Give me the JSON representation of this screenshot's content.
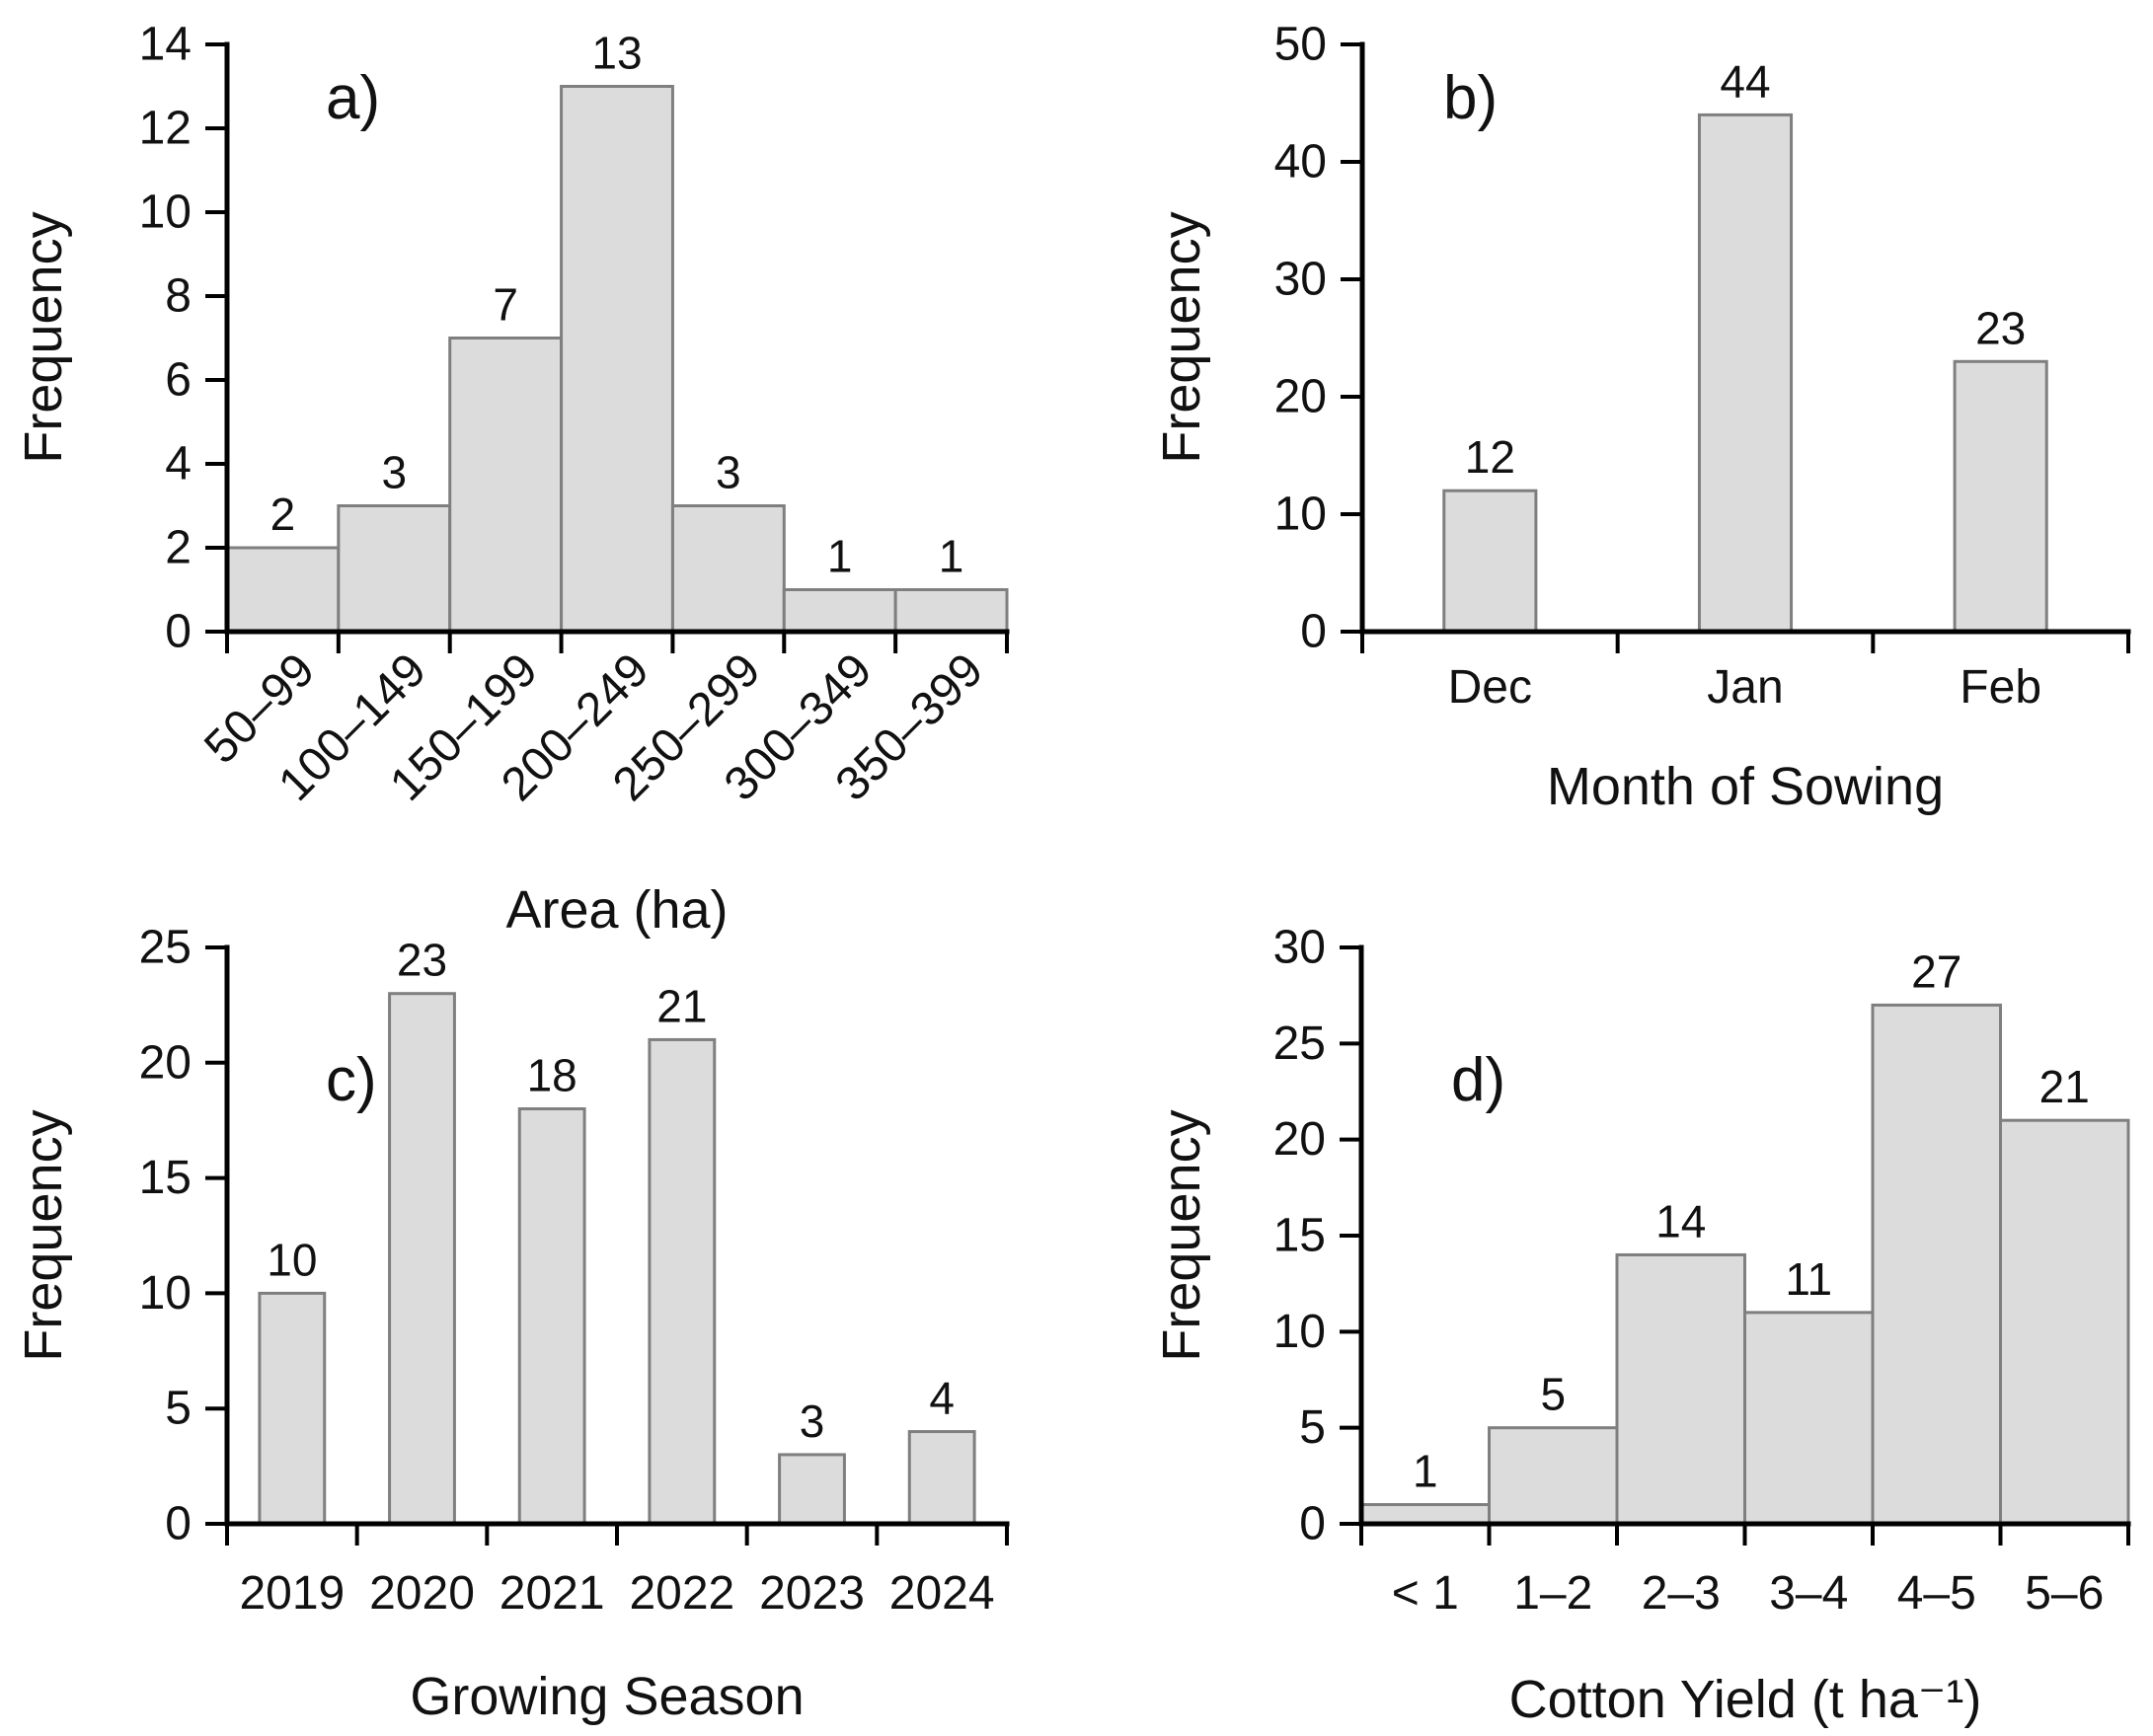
{
  "figure": {
    "background": "#ffffff"
  },
  "colors": {
    "bar_fill": "#dcdcdc",
    "bar_stroke": "#7f7f7f",
    "axis": "#000000",
    "text": "#111111"
  },
  "chart_data": [
    {
      "id": "a",
      "panel_label": "a)",
      "type": "bar",
      "style": "histogram",
      "xlabel": "Area (ha)",
      "ylabel": "Frequency",
      "categories": [
        "50–99",
        "100–149",
        "150–199",
        "200–249",
        "250–299",
        "300–349",
        "350–399"
      ],
      "values": [
        2,
        3,
        7,
        13,
        3,
        1,
        1
      ],
      "ylim": [
        0,
        14
      ],
      "ytick_step": 2,
      "rotated_xticks": true,
      "grid": false,
      "legend": "none"
    },
    {
      "id": "b",
      "panel_label": "b)",
      "type": "bar",
      "style": "column",
      "xlabel": "Month of Sowing",
      "ylabel": "Frequency",
      "categories": [
        "Dec",
        "Jan",
        "Feb"
      ],
      "values": [
        12,
        44,
        23
      ],
      "ylim": [
        0,
        50
      ],
      "ytick_step": 10,
      "rotated_xticks": false,
      "grid": false,
      "legend": "none"
    },
    {
      "id": "c",
      "panel_label": "c)",
      "type": "bar",
      "style": "column",
      "xlabel": "Growing Season",
      "ylabel": "Frequency",
      "categories": [
        "2019",
        "2020",
        "2021",
        "2022",
        "2023",
        "2024"
      ],
      "values": [
        10,
        23,
        18,
        21,
        3,
        4
      ],
      "ylim": [
        0,
        25
      ],
      "ytick_step": 5,
      "rotated_xticks": false,
      "grid": false,
      "legend": "none"
    },
    {
      "id": "d",
      "panel_label": "d)",
      "type": "bar",
      "style": "histogram",
      "xlabel": "Cotton Yield (t ha⁻¹)",
      "ylabel": "Frequency",
      "categories": [
        "< 1",
        "1–2",
        "2–3",
        "3–4",
        "4–5",
        "5–6"
      ],
      "values": [
        1,
        5,
        14,
        11,
        27,
        21
      ],
      "ylim": [
        0,
        30
      ],
      "ytick_step": 5,
      "rotated_xticks": false,
      "grid": false,
      "legend": "none"
    }
  ]
}
